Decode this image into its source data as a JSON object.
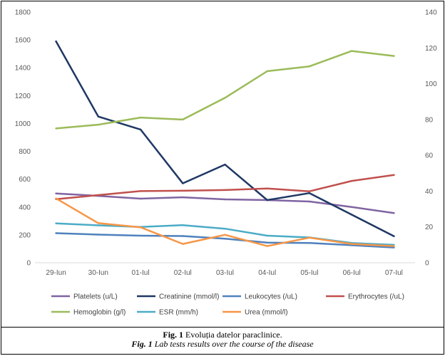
{
  "chart_data": {
    "type": "line",
    "title": "",
    "categories": [
      "29-Iun",
      "30-Iun",
      "01-Iul",
      "02-Iul",
      "03-Iul",
      "04-Iul",
      "05-Iul",
      "06-Iul",
      "07-Iul"
    ],
    "y_left": {
      "min": 0,
      "max": 1800,
      "ticks": [
        "0",
        "200",
        "400",
        "600",
        "800",
        "1000",
        "1200",
        "1400",
        "1600",
        "1800"
      ]
    },
    "y_right": {
      "min": 0,
      "max": 140,
      "ticks": [
        "0",
        "20",
        "40",
        "60",
        "80",
        "100",
        "120",
        "140"
      ]
    },
    "grid": false,
    "legend_position": "bottom",
    "series": [
      {
        "name": "Platelets (u/L)",
        "axis": "left",
        "color": "#8064a2",
        "values": [
          497,
          480,
          460,
          470,
          455,
          450,
          440,
          400,
          357
        ]
      },
      {
        "name": "Creatinine (mmol/l)",
        "axis": "left",
        "color": "#1f3864",
        "values": [
          1590,
          1050,
          957,
          570,
          705,
          450,
          500,
          345,
          190
        ]
      },
      {
        "name": "Leukocytes (/uL)",
        "axis": "right",
        "color": "#4f81bd",
        "values": [
          16.5,
          15.7,
          15.1,
          14.9,
          13.4,
          11.2,
          11.0,
          9.8,
          8.5
        ]
      },
      {
        "name": "Erythrocytes (/uL)",
        "axis": "right",
        "color": "#c0504d",
        "values": [
          35.5,
          37.8,
          40.0,
          40.2,
          40.6,
          41.5,
          39.9,
          45.7,
          49.0
        ]
      },
      {
        "name": "Hemoglobin (g/l)",
        "axis": "right",
        "color": "#9bbb59",
        "values": [
          75.0,
          77.1,
          81.1,
          80.0,
          92.1,
          107.0,
          109.7,
          118.3,
          115.5
        ]
      },
      {
        "name": "ESR (mm/h)",
        "axis": "right",
        "color": "#4bacc6",
        "values": [
          22.0,
          20.9,
          20.0,
          21.0,
          19.0,
          15.1,
          14.1,
          11.0,
          10.0
        ]
      },
      {
        "name": "Urea (mmol/l)",
        "axis": "right",
        "color": "#f79646",
        "values": [
          35.9,
          22.1,
          19.8,
          10.5,
          15.6,
          9.3,
          14.0,
          10.5,
          9.3
        ]
      }
    ]
  },
  "caption": {
    "line1_label": "Fig. 1",
    "line1_text": " Evoluția datelor paraclinice.",
    "line2_label": "Fig. 1",
    "line2_text": " Lab tests results over the course of the disease"
  }
}
